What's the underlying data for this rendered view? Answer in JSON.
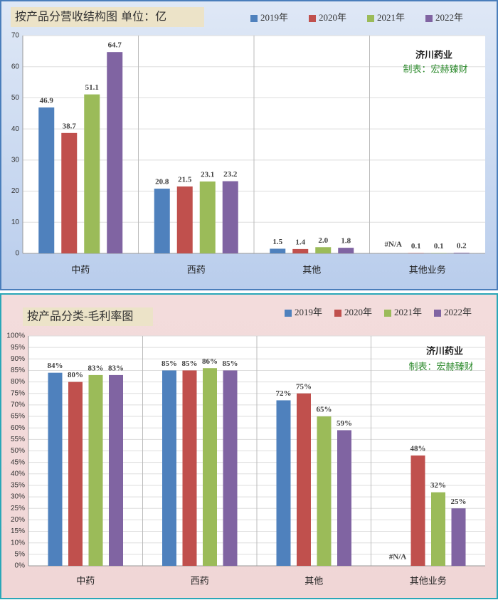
{
  "chart_data": [
    {
      "type": "bar",
      "title": "按产品分营收结构图 单位：亿",
      "categories": [
        "中药",
        "西药",
        "其他",
        "其他业务"
      ],
      "series": [
        {
          "name": "2019年",
          "color": "#4f81bd",
          "values": [
            46.9,
            20.8,
            1.5,
            null
          ],
          "value_labels": [
            "46.9",
            "20.8",
            "1.5",
            "#N/A"
          ]
        },
        {
          "name": "2020年",
          "color": "#c0504d",
          "values": [
            38.7,
            21.5,
            1.4,
            0.1
          ]
        },
        {
          "name": "2021年",
          "color": "#9bbb59",
          "values": [
            51.1,
            23.1,
            2.0,
            0.1
          ],
          "value_labels": [
            "51.1",
            "23.1",
            "2.0",
            "0.1"
          ]
        },
        {
          "name": "2022年",
          "color": "#8064a2",
          "values": [
            64.7,
            23.2,
            1.8,
            0.2
          ]
        }
      ],
      "ylim": [
        0,
        70
      ],
      "yticks": [
        0,
        10,
        20,
        30,
        40,
        50,
        60,
        70
      ],
      "grid": true,
      "annotations": [
        "济川药业",
        "制表：宏赫臻财"
      ]
    },
    {
      "type": "bar",
      "title": "按产品分类-毛利率图",
      "categories": [
        "中药",
        "西药",
        "其他",
        "其他业务"
      ],
      "series": [
        {
          "name": "2019年",
          "color": "#4f81bd",
          "values": [
            84,
            85,
            72,
            null
          ],
          "value_labels": [
            "84%",
            "85%",
            "72%",
            "#N/A"
          ]
        },
        {
          "name": "2020年",
          "color": "#c0504d",
          "values": [
            80,
            85,
            75,
            48
          ],
          "value_labels": [
            "80%",
            "85%",
            "75%",
            "48%"
          ]
        },
        {
          "name": "2021年",
          "color": "#9bbb59",
          "values": [
            83,
            86,
            65,
            32
          ],
          "value_labels": [
            "83%",
            "86%",
            "65%",
            "32%"
          ]
        },
        {
          "name": "2022年",
          "color": "#8064a2",
          "values": [
            83,
            85,
            59,
            25
          ],
          "value_labels": [
            "83%",
            "85%",
            "59%",
            "25%"
          ],
          "label_color": "#0000ff"
        }
      ],
      "ylim": [
        0,
        100
      ],
      "yticks": [
        {
          "value": 0,
          "label": "0%"
        },
        {
          "value": 5,
          "label": "5%"
        },
        {
          "value": 10,
          "label": "10%"
        },
        {
          "value": 15,
          "label": "15%"
        },
        {
          "value": 20,
          "label": "20%"
        },
        {
          "value": 25,
          "label": "25%"
        },
        {
          "value": 30,
          "label": "30%"
        },
        {
          "value": 35,
          "label": "35%"
        },
        {
          "value": 40,
          "label": "40%"
        },
        {
          "value": 45,
          "label": "45%"
        },
        {
          "value": 50,
          "label": "50%"
        },
        {
          "value": 55,
          "label": "55%"
        },
        {
          "value": 60,
          "label": "60%"
        },
        {
          "value": 65,
          "label": "65%"
        },
        {
          "value": 70,
          "label": "70%"
        },
        {
          "value": 75,
          "label": "75%"
        },
        {
          "value": 80,
          "label": "80%"
        },
        {
          "value": 85,
          "label": "85%"
        },
        {
          "value": 90,
          "label": "90%"
        },
        {
          "value": 95,
          "label": "95%"
        },
        {
          "value": 100,
          "label": "100%"
        }
      ],
      "grid": true,
      "annotations": [
        "济川药业",
        "制表：宏赫臻财"
      ]
    }
  ]
}
